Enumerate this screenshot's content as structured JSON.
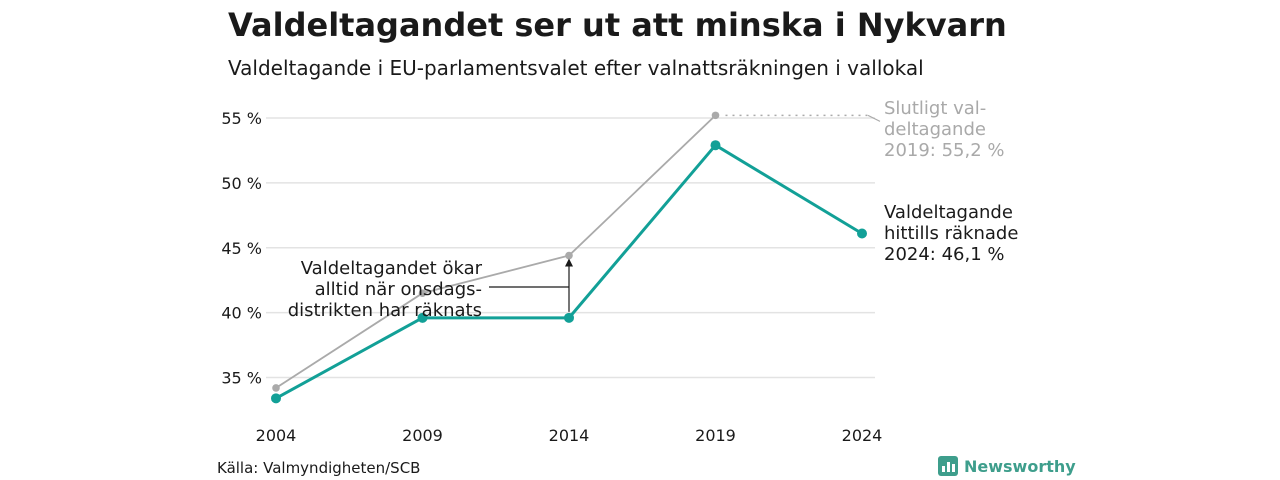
{
  "header": {
    "title": "Valdeltagandet ser ut att minska i Nykvarn",
    "subtitle": "Valdeltagande i EU-parlamentsvalet efter valnattsräkningen i vallokal"
  },
  "footer": {
    "source": "Källa: Valmyndigheten/SCB",
    "brand": "Newsworthy"
  },
  "colors": {
    "accent": "#12a097",
    "final": "#aaaaaa",
    "grid": "#e3e3e3"
  },
  "chart_data": {
    "type": "line",
    "title": "Valdeltagandet ser ut att minska i Nykvarn",
    "subtitle": "Valdeltagande i EU-parlamentsvalet efter valnattsräkningen i vallokal",
    "x": [
      2004,
      2009,
      2014,
      2019,
      2024
    ],
    "x_tick_labels": [
      "2004",
      "2009",
      "2014",
      "2019",
      "2024"
    ],
    "y_ticks": [
      35,
      40,
      45,
      50,
      55
    ],
    "y_tick_labels": [
      "35 %",
      "40 %",
      "45 %",
      "50 %",
      "55 %"
    ],
    "ylim": [
      32.5,
      57
    ],
    "grid": true,
    "series": [
      {
        "key": "final",
        "color": "#aaaaaa",
        "x": [
          2004,
          2009,
          2014,
          2019
        ],
        "values": [
          34.2,
          41.5,
          44.4,
          55.2
        ]
      },
      {
        "key": "valnatt",
        "color": "#12a097",
        "x": [
          2004,
          2009,
          2014,
          2019,
          2024
        ],
        "values": [
          33.4,
          39.6,
          39.6,
          52.9,
          46.1
        ]
      }
    ],
    "annotations": {
      "final_label": [
        "Slutligt val-",
        "deltagande",
        "2019: 55,2 %"
      ],
      "current_label": [
        "Valdeltagande",
        "hittills räknade",
        "2024: 46,1 %"
      ],
      "note": [
        "Valdeltagandet ökar",
        "alltid när onsdags-",
        "distrikten har räknats"
      ]
    }
  }
}
